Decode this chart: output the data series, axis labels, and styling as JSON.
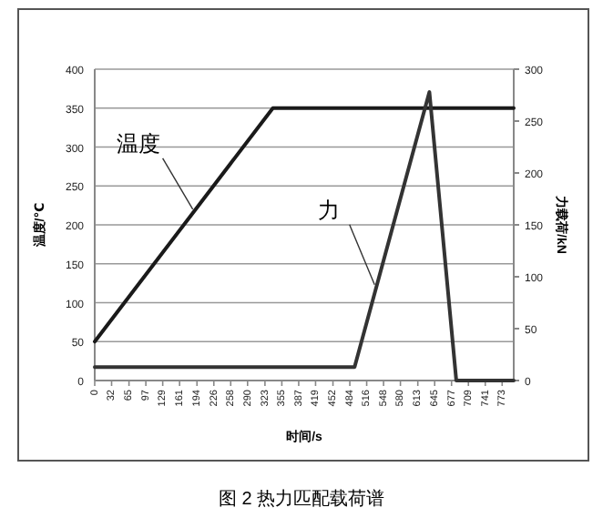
{
  "chart_data": {
    "type": "line",
    "xlabel": "时间/s",
    "ylabel": "温度/℃",
    "y2label": "力载荷/kN",
    "xlim": [
      0,
      795
    ],
    "xticks": [
      0,
      32,
      65,
      97,
      129,
      161,
      194,
      226,
      258,
      290,
      323,
      355,
      387,
      419,
      452,
      484,
      516,
      548,
      580,
      613,
      645,
      677,
      709,
      741,
      773
    ],
    "ylim": [
      0,
      400
    ],
    "yticks": [
      0,
      50,
      100,
      150,
      200,
      250,
      300,
      350,
      400
    ],
    "y2lim": [
      0,
      300
    ],
    "y2ticks": [
      0,
      50,
      100,
      150,
      200,
      250,
      300
    ],
    "grid": "y",
    "series": [
      {
        "color": "#1a1a1a",
        "x": [
          0,
          338,
          795
        ],
        "values": [
          50,
          350,
          350
        ]
      },
      {
        "color": "#333333",
        "axis": "y2",
        "x": [
          0,
          493,
          635,
          686,
          795
        ],
        "values": [
          13,
          13,
          278,
          0,
          0
        ]
      }
    ],
    "annotations": [
      {
        "text": "温度",
        "x": 186,
        "y": 220
      },
      {
        "text": "力",
        "x": 531,
        "y": 123
      },
      "图 2   热力匹配载荷谱"
    ]
  }
}
